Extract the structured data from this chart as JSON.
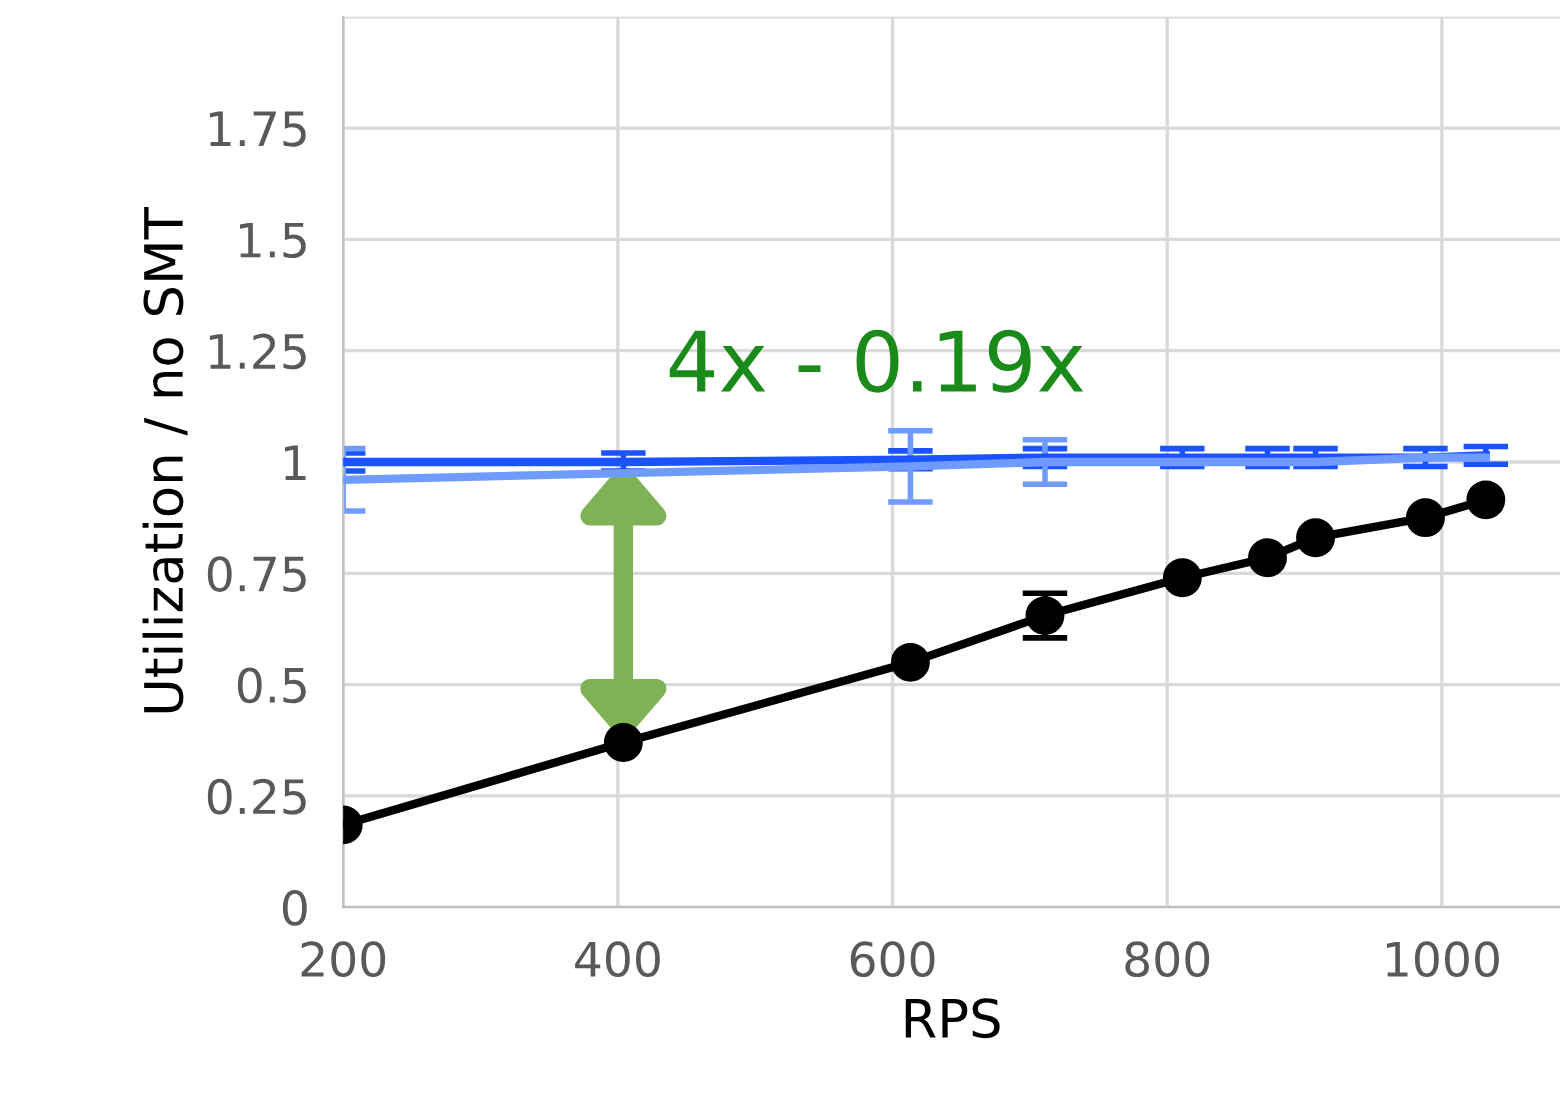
{
  "chart_data": {
    "type": "line",
    "xlabel": "RPS",
    "ylabel": "Utilization / no SMT",
    "x": [
      200,
      404,
      613,
      711,
      811,
      873,
      908,
      988,
      1032
    ],
    "series": [
      {
        "color": "#1a53ff",
        "values": [
          1.0,
          1.0,
          1.005,
          1.01,
          1.01,
          1.01,
          1.01,
          1.01,
          1.015
        ],
        "errors": [
          0.02,
          0.02,
          0.02,
          0.02,
          0.02,
          0.02,
          0.02,
          0.02,
          0.02
        ],
        "marker": "none"
      },
      {
        "color": "#6f9bff",
        "values": [
          0.96,
          0.975,
          0.99,
          1.0,
          1.0,
          1.0,
          1.0,
          1.01,
          1.01
        ],
        "errors": [
          0.07,
          null,
          0.08,
          0.05,
          null,
          null,
          null,
          null,
          null
        ],
        "marker": "none"
      },
      {
        "color": "#000000",
        "values": [
          0.185,
          0.37,
          0.55,
          0.655,
          0.74,
          0.785,
          0.83,
          0.875,
          0.915
        ],
        "errors": [
          null,
          null,
          null,
          0.05,
          null,
          null,
          null,
          null,
          null
        ],
        "marker": "circle"
      }
    ],
    "xlim": [
      200,
      1086
    ],
    "xticks": [
      200,
      400,
      600,
      800,
      1000
    ],
    "ylim": [
      0,
      2
    ],
    "yticks": [
      0,
      0.25,
      0.5,
      0.75,
      1,
      1.25,
      1.5,
      1.75,
      {
        "value": 2,
        "label": null
      }
    ],
    "grid": true,
    "annotations": [
      "4x - 0.19x"
    ]
  }
}
